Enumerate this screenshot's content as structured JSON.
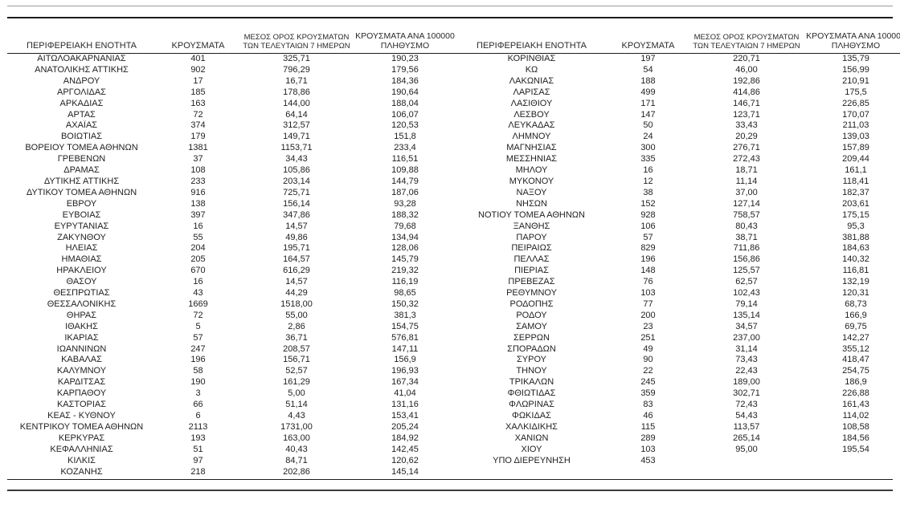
{
  "report": {
    "headers": {
      "region": "ΠΕΡΙΦΕΡΕΙΑΚΗ ΕΝΟΤΗΤΑ",
      "cases": "ΚΡΟΥΣΜΑΤΑ",
      "avg7": "ΜΕΣΟΣ ΟΡΟΣ ΚΡΟΥΣΜΑΤΩΝ ΤΩΝ ΤΕΛΕΥΤΑΙΩΝ 7 ΗΜΕΡΩΝ",
      "per100k": "ΚΡΟΥΣΜΑΤΑ ΑΝΑ 100000 ΠΛΗΘΥΣΜΟ"
    },
    "colors": {
      "text": "#1f1f1f",
      "rule_dark": "#1c1c1c",
      "rule_light": "#9a9a9a"
    },
    "left_rows": [
      [
        "ΑΙΤΩΛΟΑΚΑΡΝΑΝΙΑΣ",
        "401",
        "325,71",
        "190,23"
      ],
      [
        "ΑΝΑΤΟΛΙΚΗΣ ΑΤΤΙΚΗΣ",
        "902",
        "796,29",
        "179,56"
      ],
      [
        "ΑΝΔΡΟΥ",
        "17",
        "16,71",
        "184,36"
      ],
      [
        "ΑΡΓΟΛΙΔΑΣ",
        "185",
        "178,86",
        "190,64"
      ],
      [
        "ΑΡΚΑΔΙΑΣ",
        "163",
        "144,00",
        "188,04"
      ],
      [
        "ΑΡΤΑΣ",
        "72",
        "64,14",
        "106,07"
      ],
      [
        "ΑΧΑΪΑΣ",
        "374",
        "312,57",
        "120,53"
      ],
      [
        "ΒΟΙΩΤΙΑΣ",
        "179",
        "149,71",
        "151,8"
      ],
      [
        "ΒΟΡΕΙΟΥ ΤΟΜΕΑ ΑΘΗΝΩΝ",
        "1381",
        "1153,71",
        "233,4"
      ],
      [
        "ΓΡΕΒΕΝΩΝ",
        "37",
        "34,43",
        "116,51"
      ],
      [
        "ΔΡΑΜΑΣ",
        "108",
        "105,86",
        "109,88"
      ],
      [
        "ΔΥΤΙΚΗΣ ΑΤΤΙΚΗΣ",
        "233",
        "203,14",
        "144,79"
      ],
      [
        "ΔΥΤΙΚΟΥ ΤΟΜΕΑ ΑΘΗΝΩΝ",
        "916",
        "725,71",
        "187,06"
      ],
      [
        "ΕΒΡΟΥ",
        "138",
        "156,14",
        "93,28"
      ],
      [
        "ΕΥΒΟΙΑΣ",
        "397",
        "347,86",
        "188,32"
      ],
      [
        "ΕΥΡΥΤΑΝΙΑΣ",
        "16",
        "14,57",
        "79,68"
      ],
      [
        "ΖΑΚΥΝΘΟΥ",
        "55",
        "49,86",
        "134,94"
      ],
      [
        "ΗΛΕΙΑΣ",
        "204",
        "195,71",
        "128,06"
      ],
      [
        "ΗΜΑΘΙΑΣ",
        "205",
        "164,57",
        "145,79"
      ],
      [
        "ΗΡΑΚΛΕΙΟΥ",
        "670",
        "616,29",
        "219,32"
      ],
      [
        "ΘΑΣΟΥ",
        "16",
        "14,57",
        "116,19"
      ],
      [
        "ΘΕΣΠΡΩΤΙΑΣ",
        "43",
        "44,29",
        "98,65"
      ],
      [
        "ΘΕΣΣΑΛΟΝΙΚΗΣ",
        "1669",
        "1518,00",
        "150,32"
      ],
      [
        "ΘΗΡΑΣ",
        "72",
        "55,00",
        "381,3"
      ],
      [
        "ΙΘΑΚΗΣ",
        "5",
        "2,86",
        "154,75"
      ],
      [
        "ΙΚΑΡΙΑΣ",
        "57",
        "36,71",
        "576,81"
      ],
      [
        "ΙΩΑΝΝΙΝΩΝ",
        "247",
        "208,57",
        "147,11"
      ],
      [
        "ΚΑΒΑΛΑΣ",
        "196",
        "156,71",
        "156,9"
      ],
      [
        "ΚΑΛΥΜΝΟΥ",
        "58",
        "52,57",
        "196,93"
      ],
      [
        "ΚΑΡΔΙΤΣΑΣ",
        "190",
        "161,29",
        "167,34"
      ],
      [
        "ΚΑΡΠΑΘΟΥ",
        "3",
        "5,00",
        "41,04"
      ],
      [
        "ΚΑΣΤΟΡΙΑΣ",
        "66",
        "51,14",
        "131,16"
      ],
      [
        "ΚΕΑΣ - ΚΥΘΝΟΥ",
        "6",
        "4,43",
        "153,41"
      ],
      [
        "ΚΕΝΤΡΙΚΟΥ ΤΟΜΕΑ ΑΘΗΝΩΝ",
        "2113",
        "1731,00",
        "205,24"
      ],
      [
        "ΚΕΡΚΥΡΑΣ",
        "193",
        "163,00",
        "184,92"
      ],
      [
        "ΚΕΦΑΛΛΗΝΙΑΣ",
        "51",
        "40,43",
        "142,45"
      ],
      [
        "ΚΙΛΚΙΣ",
        "97",
        "84,71",
        "120,62"
      ],
      [
        "ΚΟΖΑΝΗΣ",
        "218",
        "202,86",
        "145,14"
      ]
    ],
    "right_rows": [
      [
        "ΚΟΡΙΝΘΙΑΣ",
        "197",
        "220,71",
        "135,79"
      ],
      [
        "ΚΩ",
        "54",
        "46,00",
        "156,99"
      ],
      [
        "ΛΑΚΩΝΙΑΣ",
        "188",
        "192,86",
        "210,91"
      ],
      [
        "ΛΑΡΙΣΑΣ",
        "499",
        "414,86",
        "175,5"
      ],
      [
        "ΛΑΣΙΘΙΟΥ",
        "171",
        "146,71",
        "226,85"
      ],
      [
        "ΛΕΣΒΟΥ",
        "147",
        "123,71",
        "170,07"
      ],
      [
        "ΛΕΥΚΑΔΑΣ",
        "50",
        "33,43",
        "211,03"
      ],
      [
        "ΛΗΜΝΟΥ",
        "24",
        "20,29",
        "139,03"
      ],
      [
        "ΜΑΓΝΗΣΙΑΣ",
        "300",
        "276,71",
        "157,89"
      ],
      [
        "ΜΕΣΣΗΝΙΑΣ",
        "335",
        "272,43",
        "209,44"
      ],
      [
        "ΜΗΛΟΥ",
        "16",
        "18,71",
        "161,1"
      ],
      [
        "ΜΥΚΟΝΟΥ",
        "12",
        "11,14",
        "118,41"
      ],
      [
        "ΝΑΞΟΥ",
        "38",
        "37,00",
        "182,37"
      ],
      [
        "ΝΗΣΩΝ",
        "152",
        "127,14",
        "203,61"
      ],
      [
        "ΝΟΤΙΟΥ ΤΟΜΕΑ ΑΘΗΝΩΝ",
        "928",
        "758,57",
        "175,15"
      ],
      [
        "ΞΑΝΘΗΣ",
        "106",
        "80,43",
        "95,3"
      ],
      [
        "ΠΑΡΟΥ",
        "57",
        "38,71",
        "381,88"
      ],
      [
        "ΠΕΙΡΑΙΩΣ",
        "829",
        "711,86",
        "184,63"
      ],
      [
        "ΠΕΛΛΑΣ",
        "196",
        "156,86",
        "140,32"
      ],
      [
        "ΠΙΕΡΙΑΣ",
        "148",
        "125,57",
        "116,81"
      ],
      [
        "ΠΡΕΒΕΖΑΣ",
        "76",
        "62,57",
        "132,19"
      ],
      [
        "ΡΕΘΥΜΝΟΥ",
        "103",
        "102,43",
        "120,31"
      ],
      [
        "ΡΟΔΟΠΗΣ",
        "77",
        "79,14",
        "68,73"
      ],
      [
        "ΡΟΔΟΥ",
        "200",
        "135,14",
        "166,9"
      ],
      [
        "ΣΑΜΟΥ",
        "23",
        "34,57",
        "69,75"
      ],
      [
        "ΣΕΡΡΩΝ",
        "251",
        "237,00",
        "142,27"
      ],
      [
        "ΣΠΟΡΑΔΩΝ",
        "49",
        "31,14",
        "355,12"
      ],
      [
        "ΣΥΡΟΥ",
        "90",
        "73,43",
        "418,47"
      ],
      [
        "ΤΗΝΟΥ",
        "22",
        "22,43",
        "254,75"
      ],
      [
        "ΤΡΙΚΑΛΩΝ",
        "245",
        "189,00",
        "186,9"
      ],
      [
        "ΦΘΙΩΤΙΔΑΣ",
        "359",
        "302,71",
        "226,88"
      ],
      [
        "ΦΛΩΡΙΝΑΣ",
        "83",
        "72,43",
        "161,43"
      ],
      [
        "ΦΩΚΙΔΑΣ",
        "46",
        "54,43",
        "114,02"
      ],
      [
        "ΧΑΛΚΙΔΙΚΗΣ",
        "115",
        "113,57",
        "108,58"
      ],
      [
        "ΧΑΝΙΩΝ",
        "289",
        "265,14",
        "184,56"
      ],
      [
        "ΧΙΟΥ",
        "103",
        "95,00",
        "195,54"
      ],
      [
        "ΥΠΟ ΔΙΕΡΕΥΝΗΣΗ",
        "453",
        "",
        ""
      ]
    ]
  }
}
